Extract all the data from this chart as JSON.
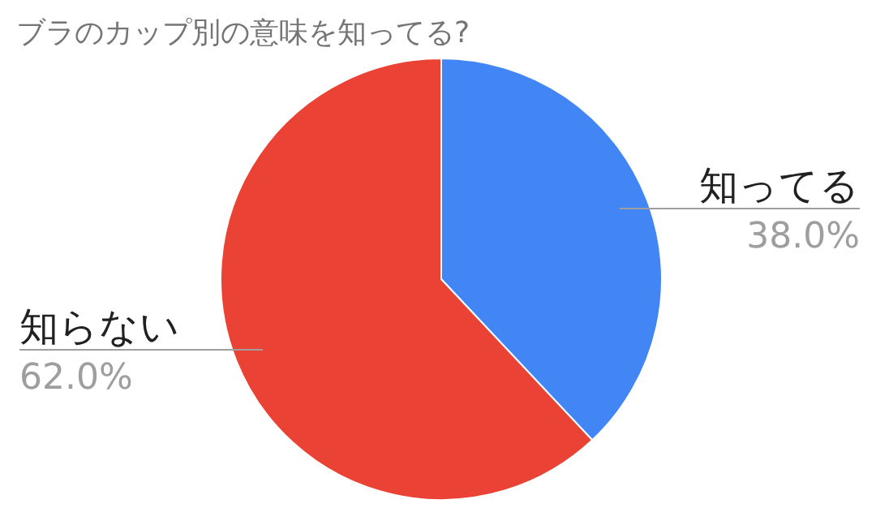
{
  "chart_data": {
    "type": "pie",
    "title": "ブラのカップ別の意味を知ってる?",
    "categories": [
      "知ってる",
      "知らない"
    ],
    "values": [
      38.0,
      62.0
    ],
    "value_labels": [
      "38.0%",
      "62.0%"
    ],
    "colors": [
      "#4285f4",
      "#ea4335"
    ]
  }
}
